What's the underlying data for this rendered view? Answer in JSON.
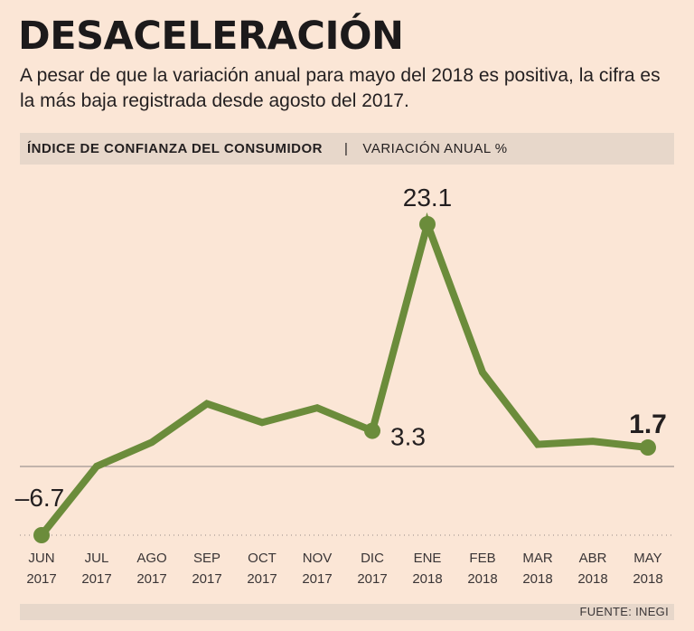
{
  "header": {
    "title": "DESACELERACIÓN",
    "subtitle": "A pesar de que la variación anual para mayo del 2018 es positiva, la cifra es la más baja registrada desde agosto del 2017.",
    "band_left": "ÍNDICE DE CONFIANZA DEL CONSUMIDOR",
    "band_sep": "|",
    "band_right": "VARIACIÓN ANUAL %"
  },
  "footer": {
    "source": "FUENTE: INEGI"
  },
  "chart_data": {
    "type": "line",
    "title": "ÍNDICE DE CONFIANZA DEL CONSUMIDOR",
    "ylabel": "VARIACIÓN ANUAL %",
    "categories": [
      "JUN 2017",
      "JUL 2017",
      "AGO 2017",
      "SEP 2017",
      "OCT 2017",
      "NOV 2017",
      "DIC 2017",
      "ENE 2018",
      "FEB 2018",
      "MAR 2018",
      "ABR 2018",
      "MAY 2018"
    ],
    "cat_month": [
      "JUN",
      "JUL",
      "AGO",
      "SEP",
      "OCT",
      "NOV",
      "DIC",
      "ENE",
      "FEB",
      "MAR",
      "ABR",
      "MAY"
    ],
    "cat_year": [
      "2017",
      "2017",
      "2017",
      "2017",
      "2017",
      "2017",
      "2017",
      "2018",
      "2018",
      "2018",
      "2018",
      "2018"
    ],
    "values": [
      -6.7,
      -0.1,
      2.2,
      5.9,
      4.1,
      5.5,
      3.3,
      23.1,
      8.9,
      2.0,
      2.3,
      1.7
    ],
    "labels": [
      {
        "index": 0,
        "text": "–6.7",
        "bold": false
      },
      {
        "index": 6,
        "text": "3.3",
        "bold": false
      },
      {
        "index": 7,
        "text": "23.1",
        "bold": false
      },
      {
        "index": 11,
        "text": "1.7",
        "bold": true
      }
    ],
    "ylim": [
      -6.7,
      23.1
    ],
    "line_color": "#6b8c3b",
    "grid": false
  }
}
